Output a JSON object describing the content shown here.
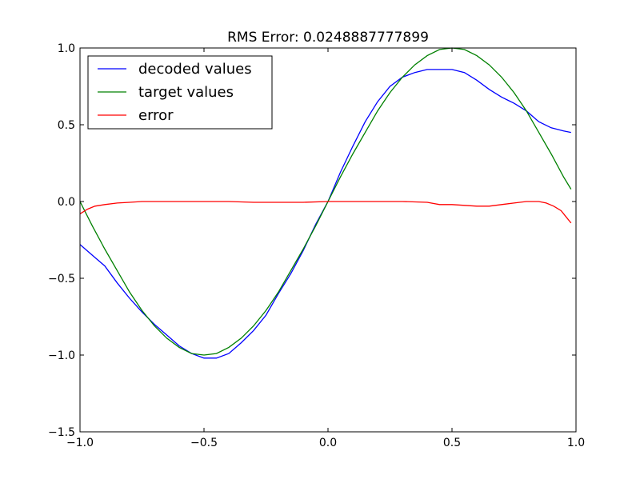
{
  "chart_data": {
    "type": "line",
    "title": "RMS Error: 0.0248887777899",
    "xlabel": "",
    "ylabel": "",
    "xlim": [
      -1.0,
      1.0
    ],
    "ylim": [
      -1.5,
      1.0
    ],
    "x_ticks": [
      -1.0,
      -0.5,
      0.0,
      0.5,
      1.0
    ],
    "x_tick_labels": [
      "−1.0",
      "−0.5",
      "0.0",
      "0.5",
      "1.0"
    ],
    "y_ticks": [
      -1.5,
      -1.0,
      -0.5,
      0.0,
      0.5,
      1.0
    ],
    "y_tick_labels": [
      "−1.5",
      "−1.0",
      "−0.5",
      "0.0",
      "0.5",
      "1.0"
    ],
    "grid": false,
    "legend_position": "top-left",
    "series": [
      {
        "name": "decoded values",
        "color": "#0000ff",
        "x": [
          -1.0,
          -0.95,
          -0.9,
          -0.85,
          -0.8,
          -0.75,
          -0.7,
          -0.65,
          -0.6,
          -0.55,
          -0.5,
          -0.45,
          -0.4,
          -0.35,
          -0.3,
          -0.25,
          -0.2,
          -0.15,
          -0.1,
          -0.05,
          0.0,
          0.05,
          0.1,
          0.15,
          0.2,
          0.25,
          0.3,
          0.35,
          0.4,
          0.45,
          0.5,
          0.55,
          0.6,
          0.65,
          0.7,
          0.75,
          0.8,
          0.85,
          0.9,
          0.95,
          0.98
        ],
        "y": [
          -0.28,
          -0.35,
          -0.42,
          -0.53,
          -0.63,
          -0.72,
          -0.8,
          -0.87,
          -0.94,
          -0.99,
          -1.02,
          -1.02,
          -0.99,
          -0.92,
          -0.84,
          -0.74,
          -0.6,
          -0.47,
          -0.32,
          -0.15,
          0.0,
          0.19,
          0.36,
          0.52,
          0.65,
          0.75,
          0.81,
          0.84,
          0.86,
          0.86,
          0.86,
          0.84,
          0.79,
          0.73,
          0.68,
          0.64,
          0.59,
          0.52,
          0.48,
          0.46,
          0.45
        ]
      },
      {
        "name": "target values",
        "color": "#008000",
        "x": [
          -1.0,
          -0.95,
          -0.9,
          -0.85,
          -0.8,
          -0.75,
          -0.7,
          -0.65,
          -0.6,
          -0.55,
          -0.5,
          -0.45,
          -0.4,
          -0.35,
          -0.3,
          -0.25,
          -0.2,
          -0.15,
          -0.1,
          -0.05,
          0.0,
          0.05,
          0.1,
          0.15,
          0.2,
          0.25,
          0.3,
          0.35,
          0.4,
          0.45,
          0.5,
          0.55,
          0.6,
          0.65,
          0.7,
          0.75,
          0.8,
          0.85,
          0.9,
          0.95,
          0.98
        ],
        "y": [
          0.0,
          -0.16,
          -0.31,
          -0.45,
          -0.59,
          -0.71,
          -0.81,
          -0.89,
          -0.95,
          -0.99,
          -1.0,
          -0.99,
          -0.95,
          -0.89,
          -0.81,
          -0.71,
          -0.59,
          -0.45,
          -0.31,
          -0.16,
          0.0,
          0.16,
          0.31,
          0.45,
          0.59,
          0.71,
          0.81,
          0.89,
          0.95,
          0.99,
          1.0,
          0.99,
          0.95,
          0.89,
          0.81,
          0.71,
          0.59,
          0.45,
          0.31,
          0.16,
          0.08
        ]
      },
      {
        "name": "error",
        "color": "#ff0000",
        "x": [
          -1.0,
          -0.97,
          -0.94,
          -0.9,
          -0.85,
          -0.8,
          -0.75,
          -0.7,
          -0.6,
          -0.5,
          -0.4,
          -0.3,
          -0.2,
          -0.1,
          0.0,
          0.1,
          0.2,
          0.3,
          0.4,
          0.45,
          0.5,
          0.55,
          0.6,
          0.65,
          0.7,
          0.75,
          0.8,
          0.85,
          0.88,
          0.91,
          0.94,
          0.96,
          0.98
        ],
        "y": [
          -0.08,
          -0.05,
          -0.03,
          -0.02,
          -0.01,
          -0.005,
          0.0,
          0.0,
          0.0,
          0.0,
          0.0,
          -0.005,
          -0.005,
          -0.005,
          0.0,
          0.0,
          0.0,
          0.0,
          -0.005,
          -0.02,
          -0.02,
          -0.025,
          -0.03,
          -0.03,
          -0.02,
          -0.01,
          0.0,
          0.0,
          -0.01,
          -0.03,
          -0.06,
          -0.1,
          -0.14
        ]
      }
    ]
  }
}
